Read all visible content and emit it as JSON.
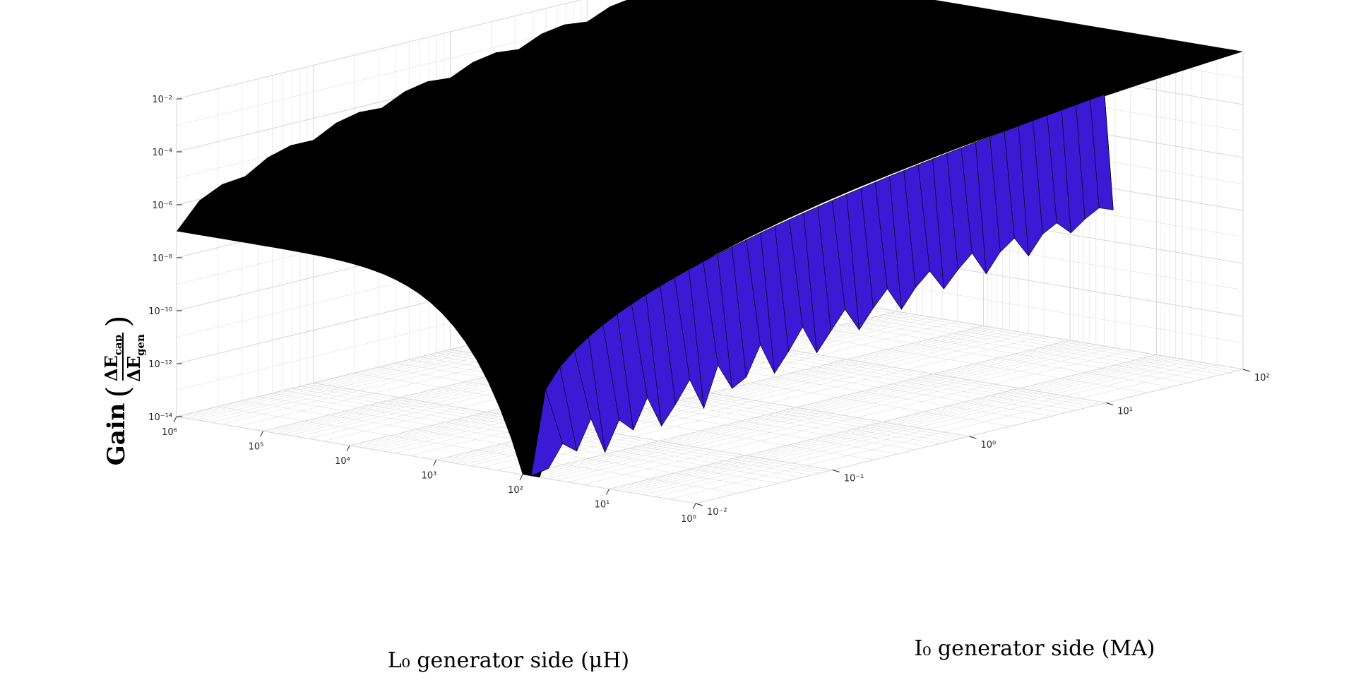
{
  "chart_data": {
    "type": "surface",
    "scale": "log-log-log",
    "grid": true,
    "grid_minor": true,
    "colors": {
      "surface_top": "#000000",
      "surface_side": "#3b1ad6",
      "mesh_line": "#000000",
      "grid": "#d9d9d9",
      "tick_text": "#262626"
    },
    "x_axis": {
      "quantity": "L0",
      "label": "L₀ generator side (μH)",
      "scale": "log",
      "range": [
        1,
        1000000
      ],
      "ticks": [
        "10⁰",
        "10¹",
        "10²",
        "10³",
        "10⁴",
        "10⁵",
        "10⁶"
      ]
    },
    "y_axis": {
      "quantity": "I0",
      "label": "I₀ generator side (MA)",
      "scale": "log",
      "range": [
        0.01,
        100
      ],
      "ticks": [
        "10⁻²",
        "10⁻¹",
        "10⁰",
        "10¹",
        "10²"
      ]
    },
    "z_axis": {
      "label": "Gain ( ΔE_cap / ΔE_gen )",
      "label_prefix": "Gain",
      "label_numerator": "ΔEₐₐₚ",
      "label_numerator_plain": "ΔE",
      "label_numerator_sub": "cap",
      "label_denominator_plain": "ΔE",
      "label_denominator_sub": "gen",
      "scale": "log",
      "range": [
        1e-14,
        0.01
      ],
      "ticks": [
        "10⁻¹⁴",
        "10⁻¹²",
        "10⁻¹⁰",
        "10⁻⁸",
        "10⁻⁶",
        "10⁻⁴",
        "10⁻²"
      ]
    },
    "surface_edges": {
      "gain_at_L0_1e6_I0_0.01": 1e-07,
      "gain_at_L0_1e6_I0_100": 0.01,
      "gain_at_L0_1_I0_100": 0.01,
      "gain_at_L0_1e2_I0_0.01": 1e-14,
      "plateau_gain_large_L0": 0.01,
      "valley_floor_gain_range": [
        1e-14,
        1e-10
      ]
    }
  }
}
